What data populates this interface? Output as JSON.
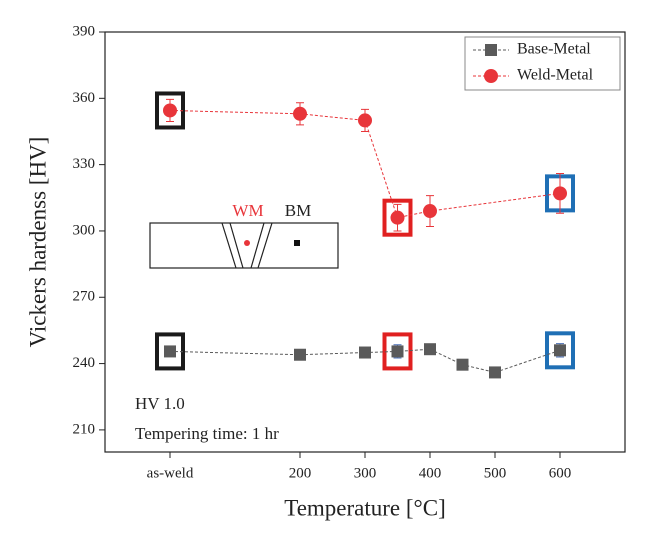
{
  "chart_data": {
    "type": "scatter-line",
    "x_label": "Temperature [°C]",
    "y_label": "Vickers hardenss [HV]",
    "xlim": [
      -100,
      700
    ],
    "xticks": [
      {
        "value": 0,
        "label": "as-weld"
      },
      200,
      300,
      400,
      500,
      600
    ],
    "ylim": [
      200,
      390
    ],
    "yticks": [
      210,
      240,
      270,
      300,
      330,
      360,
      390
    ],
    "legend": "top-right",
    "series": [
      {
        "name": "Base-Metal",
        "color": "#5a5a5a",
        "error_color": "#4a6fb5",
        "marker": "square",
        "x": [
          0,
          200,
          300,
          350,
          400,
          450,
          500,
          600
        ],
        "values": [
          245.5,
          244,
          245,
          245.5,
          246.5,
          239.5,
          236,
          246
        ],
        "errors": [
          2,
          1,
          1,
          3,
          2,
          1,
          1,
          3
        ]
      },
      {
        "name": "Weld-Metal",
        "color": "#e8353a",
        "error_color": "#e8353a",
        "marker": "circle",
        "x": [
          0,
          200,
          300,
          350,
          400,
          600
        ],
        "values": [
          354.5,
          353,
          350,
          306,
          309,
          317
        ],
        "errors": [
          5,
          5,
          5,
          6,
          7,
          9
        ]
      }
    ],
    "highlight_boxes": [
      {
        "x": 0,
        "color": "#1a1a1a"
      },
      {
        "x": 350,
        "color": "#e02020"
      },
      {
        "x": 600,
        "color": "#1f6fb5"
      }
    ],
    "annotations": [
      "HV 1.0",
      "Tempering time: 1 hr"
    ],
    "inset_labels": [
      "WM",
      "BM"
    ]
  }
}
